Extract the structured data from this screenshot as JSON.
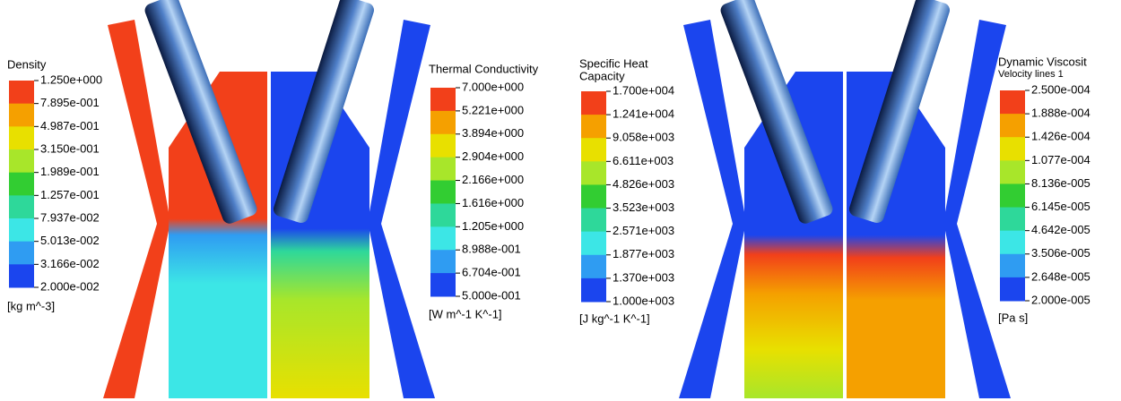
{
  "colormap": [
    "#f2401a",
    "#f5a000",
    "#e8e000",
    "#a8e62a",
    "#32cd32",
    "#2ed89a",
    "#3ce6e6",
    "#2f9cf2",
    "#1b45ee"
  ],
  "legends": [
    {
      "title": [
        "Density"
      ],
      "labels": [
        "1.250e+000",
        "7.895e-001",
        "4.987e-001",
        "3.150e-001",
        "1.989e-001",
        "1.257e-001",
        "7.937e-002",
        "5.013e-002",
        "3.166e-002",
        "2.000e-002"
      ],
      "unit": "[kg m^-3]"
    },
    {
      "title": [
        "Thermal Conductivity"
      ],
      "labels": [
        "7.000e+000",
        "5.221e+000",
        "3.894e+000",
        "2.904e+000",
        "2.166e+000",
        "1.616e+000",
        "1.205e+000",
        "8.988e-001",
        "6.704e-001",
        "5.000e-001"
      ],
      "unit": "[W m^-1 K^-1]"
    },
    {
      "title": [
        "Specific Heat",
        "Capacity"
      ],
      "labels": [
        "1.700e+004",
        "1.241e+004",
        "9.058e+003",
        "6.611e+003",
        "4.826e+003",
        "3.523e+003",
        "2.571e+003",
        "1.877e+003",
        "1.370e+003",
        "1.000e+003"
      ],
      "unit": "[J kg^-1 K^-1]"
    },
    {
      "title": [
        "Dynamic Viscosit",
        "Velocity lines 1"
      ],
      "labels": [
        "2.500e-004",
        "1.888e-004",
        "1.426e-004",
        "1.077e-004",
        "8.136e-005",
        "6.145e-005",
        "4.642e-005",
        "3.506e-005",
        "2.648e-005",
        "2.000e-005"
      ],
      "unit": "[Pa s]"
    }
  ]
}
